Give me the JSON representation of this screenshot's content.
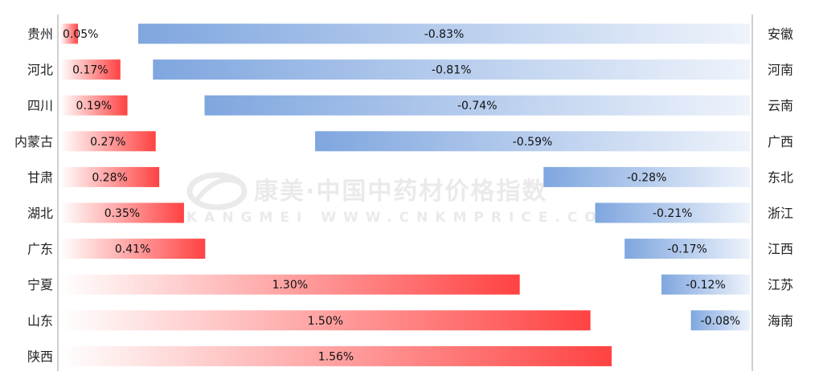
{
  "watermark": {
    "text_cn": "康美·中国中药材价格指数",
    "text_en": "KANGMEI WWW.CNKMPRICE.COM"
  },
  "colors": {
    "rise": "#ff4242",
    "fall": "#7fa6df",
    "axis": "#bfbfbf"
  },
  "chart_data": [
    {
      "type": "bar",
      "orientation": "horizontal",
      "series": [
        {
          "categories": [
            "贵州",
            "河北",
            "四川",
            "内蒙古",
            "甘肃",
            "湖北",
            "广东",
            "宁夏",
            "山东",
            "陕西"
          ],
          "values": [
            0.05,
            0.17,
            0.19,
            0.27,
            0.28,
            0.35,
            0.41,
            1.3,
            1.5,
            1.56
          ],
          "labels": [
            "0.05%",
            "0.17%",
            "0.19%",
            "0.27%",
            "0.28%",
            "0.35%",
            "0.41%",
            "1.30%",
            "1.50%",
            "1.56%"
          ]
        }
      ],
      "xlim": [
        0,
        1.56
      ],
      "label_side": "left"
    },
    {
      "type": "bar",
      "orientation": "horizontal",
      "series": [
        {
          "categories": [
            "安徽",
            "河南",
            "云南",
            "广西",
            "东北",
            "浙江",
            "江西",
            "江苏",
            "海南"
          ],
          "values": [
            -0.83,
            -0.81,
            -0.74,
            -0.59,
            -0.28,
            -0.21,
            -0.17,
            -0.12,
            -0.08
          ],
          "labels": [
            "-0.83%",
            "-0.81%",
            "-0.74%",
            "-0.59%",
            "-0.28%",
            "-0.21%",
            "-0.17%",
            "-0.12%",
            "-0.08%"
          ]
        }
      ],
      "xlim": [
        -0.83,
        0
      ],
      "label_side": "right"
    }
  ]
}
